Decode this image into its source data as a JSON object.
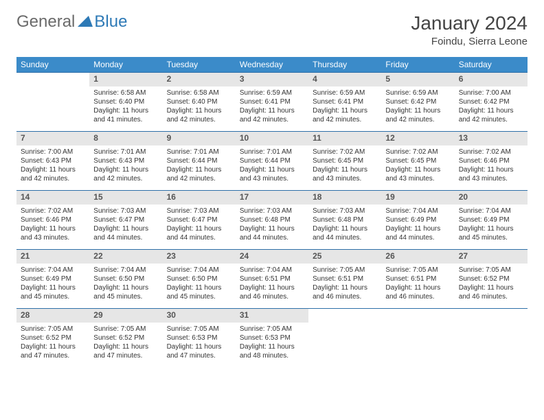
{
  "logo": {
    "text1": "General",
    "text2": "Blue"
  },
  "title": "January 2024",
  "location": "Foindu, Sierra Leone",
  "colors": {
    "header_bg": "#3b8bc9",
    "header_text": "#ffffff",
    "daynum_bg": "#e6e6e6",
    "border": "#2d6fa8",
    "logo_gray": "#6a6a6a",
    "logo_blue": "#2d79b6"
  },
  "days": [
    "Sunday",
    "Monday",
    "Tuesday",
    "Wednesday",
    "Thursday",
    "Friday",
    "Saturday"
  ],
  "weeks": [
    [
      null,
      {
        "n": "1",
        "sr": "Sunrise: 6:58 AM",
        "ss": "Sunset: 6:40 PM",
        "d1": "Daylight: 11 hours",
        "d2": "and 41 minutes."
      },
      {
        "n": "2",
        "sr": "Sunrise: 6:58 AM",
        "ss": "Sunset: 6:40 PM",
        "d1": "Daylight: 11 hours",
        "d2": "and 42 minutes."
      },
      {
        "n": "3",
        "sr": "Sunrise: 6:59 AM",
        "ss": "Sunset: 6:41 PM",
        "d1": "Daylight: 11 hours",
        "d2": "and 42 minutes."
      },
      {
        "n": "4",
        "sr": "Sunrise: 6:59 AM",
        "ss": "Sunset: 6:41 PM",
        "d1": "Daylight: 11 hours",
        "d2": "and 42 minutes."
      },
      {
        "n": "5",
        "sr": "Sunrise: 6:59 AM",
        "ss": "Sunset: 6:42 PM",
        "d1": "Daylight: 11 hours",
        "d2": "and 42 minutes."
      },
      {
        "n": "6",
        "sr": "Sunrise: 7:00 AM",
        "ss": "Sunset: 6:42 PM",
        "d1": "Daylight: 11 hours",
        "d2": "and 42 minutes."
      }
    ],
    [
      {
        "n": "7",
        "sr": "Sunrise: 7:00 AM",
        "ss": "Sunset: 6:43 PM",
        "d1": "Daylight: 11 hours",
        "d2": "and 42 minutes."
      },
      {
        "n": "8",
        "sr": "Sunrise: 7:01 AM",
        "ss": "Sunset: 6:43 PM",
        "d1": "Daylight: 11 hours",
        "d2": "and 42 minutes."
      },
      {
        "n": "9",
        "sr": "Sunrise: 7:01 AM",
        "ss": "Sunset: 6:44 PM",
        "d1": "Daylight: 11 hours",
        "d2": "and 42 minutes."
      },
      {
        "n": "10",
        "sr": "Sunrise: 7:01 AM",
        "ss": "Sunset: 6:44 PM",
        "d1": "Daylight: 11 hours",
        "d2": "and 43 minutes."
      },
      {
        "n": "11",
        "sr": "Sunrise: 7:02 AM",
        "ss": "Sunset: 6:45 PM",
        "d1": "Daylight: 11 hours",
        "d2": "and 43 minutes."
      },
      {
        "n": "12",
        "sr": "Sunrise: 7:02 AM",
        "ss": "Sunset: 6:45 PM",
        "d1": "Daylight: 11 hours",
        "d2": "and 43 minutes."
      },
      {
        "n": "13",
        "sr": "Sunrise: 7:02 AM",
        "ss": "Sunset: 6:46 PM",
        "d1": "Daylight: 11 hours",
        "d2": "and 43 minutes."
      }
    ],
    [
      {
        "n": "14",
        "sr": "Sunrise: 7:02 AM",
        "ss": "Sunset: 6:46 PM",
        "d1": "Daylight: 11 hours",
        "d2": "and 43 minutes."
      },
      {
        "n": "15",
        "sr": "Sunrise: 7:03 AM",
        "ss": "Sunset: 6:47 PM",
        "d1": "Daylight: 11 hours",
        "d2": "and 44 minutes."
      },
      {
        "n": "16",
        "sr": "Sunrise: 7:03 AM",
        "ss": "Sunset: 6:47 PM",
        "d1": "Daylight: 11 hours",
        "d2": "and 44 minutes."
      },
      {
        "n": "17",
        "sr": "Sunrise: 7:03 AM",
        "ss": "Sunset: 6:48 PM",
        "d1": "Daylight: 11 hours",
        "d2": "and 44 minutes."
      },
      {
        "n": "18",
        "sr": "Sunrise: 7:03 AM",
        "ss": "Sunset: 6:48 PM",
        "d1": "Daylight: 11 hours",
        "d2": "and 44 minutes."
      },
      {
        "n": "19",
        "sr": "Sunrise: 7:04 AM",
        "ss": "Sunset: 6:49 PM",
        "d1": "Daylight: 11 hours",
        "d2": "and 44 minutes."
      },
      {
        "n": "20",
        "sr": "Sunrise: 7:04 AM",
        "ss": "Sunset: 6:49 PM",
        "d1": "Daylight: 11 hours",
        "d2": "and 45 minutes."
      }
    ],
    [
      {
        "n": "21",
        "sr": "Sunrise: 7:04 AM",
        "ss": "Sunset: 6:49 PM",
        "d1": "Daylight: 11 hours",
        "d2": "and 45 minutes."
      },
      {
        "n": "22",
        "sr": "Sunrise: 7:04 AM",
        "ss": "Sunset: 6:50 PM",
        "d1": "Daylight: 11 hours",
        "d2": "and 45 minutes."
      },
      {
        "n": "23",
        "sr": "Sunrise: 7:04 AM",
        "ss": "Sunset: 6:50 PM",
        "d1": "Daylight: 11 hours",
        "d2": "and 45 minutes."
      },
      {
        "n": "24",
        "sr": "Sunrise: 7:04 AM",
        "ss": "Sunset: 6:51 PM",
        "d1": "Daylight: 11 hours",
        "d2": "and 46 minutes."
      },
      {
        "n": "25",
        "sr": "Sunrise: 7:05 AM",
        "ss": "Sunset: 6:51 PM",
        "d1": "Daylight: 11 hours",
        "d2": "and 46 minutes."
      },
      {
        "n": "26",
        "sr": "Sunrise: 7:05 AM",
        "ss": "Sunset: 6:51 PM",
        "d1": "Daylight: 11 hours",
        "d2": "and 46 minutes."
      },
      {
        "n": "27",
        "sr": "Sunrise: 7:05 AM",
        "ss": "Sunset: 6:52 PM",
        "d1": "Daylight: 11 hours",
        "d2": "and 46 minutes."
      }
    ],
    [
      {
        "n": "28",
        "sr": "Sunrise: 7:05 AM",
        "ss": "Sunset: 6:52 PM",
        "d1": "Daylight: 11 hours",
        "d2": "and 47 minutes."
      },
      {
        "n": "29",
        "sr": "Sunrise: 7:05 AM",
        "ss": "Sunset: 6:52 PM",
        "d1": "Daylight: 11 hours",
        "d2": "and 47 minutes."
      },
      {
        "n": "30",
        "sr": "Sunrise: 7:05 AM",
        "ss": "Sunset: 6:53 PM",
        "d1": "Daylight: 11 hours",
        "d2": "and 47 minutes."
      },
      {
        "n": "31",
        "sr": "Sunrise: 7:05 AM",
        "ss": "Sunset: 6:53 PM",
        "d1": "Daylight: 11 hours",
        "d2": "and 48 minutes."
      },
      null,
      null,
      null
    ]
  ]
}
